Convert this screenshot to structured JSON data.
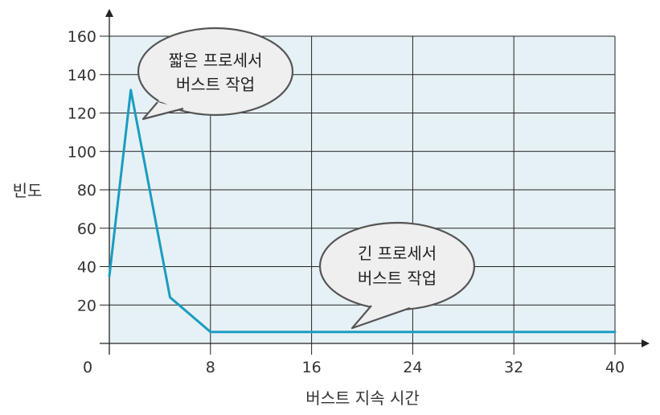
{
  "chart_data": {
    "type": "line",
    "xlabel": "버스트 지속 시간",
    "ylabel": "빈도",
    "xlim": [
      0,
      40
    ],
    "ylim": [
      0,
      160
    ],
    "xticks": [
      0,
      8,
      16,
      24,
      32,
      40
    ],
    "yticks": [
      20,
      40,
      60,
      80,
      100,
      120,
      140,
      160
    ],
    "grid": true,
    "colors": {
      "line": "#1b9cc0",
      "plot_background": "#e6f1f6",
      "grid": "#222222",
      "bubble_fill": "#efefef",
      "bubble_stroke": "#555555"
    },
    "series": [
      {
        "x": [
          0,
          1.7,
          4.8,
          8,
          16,
          24,
          32,
          40
        ],
        "y": [
          35,
          132,
          24,
          6,
          6,
          6,
          6,
          6
        ]
      }
    ],
    "annotations": [
      {
        "lines": [
          "짧은 프로세서",
          "버스트 작업"
        ]
      },
      {
        "lines": [
          "긴 프로세서",
          "버스트 작업"
        ]
      }
    ]
  }
}
